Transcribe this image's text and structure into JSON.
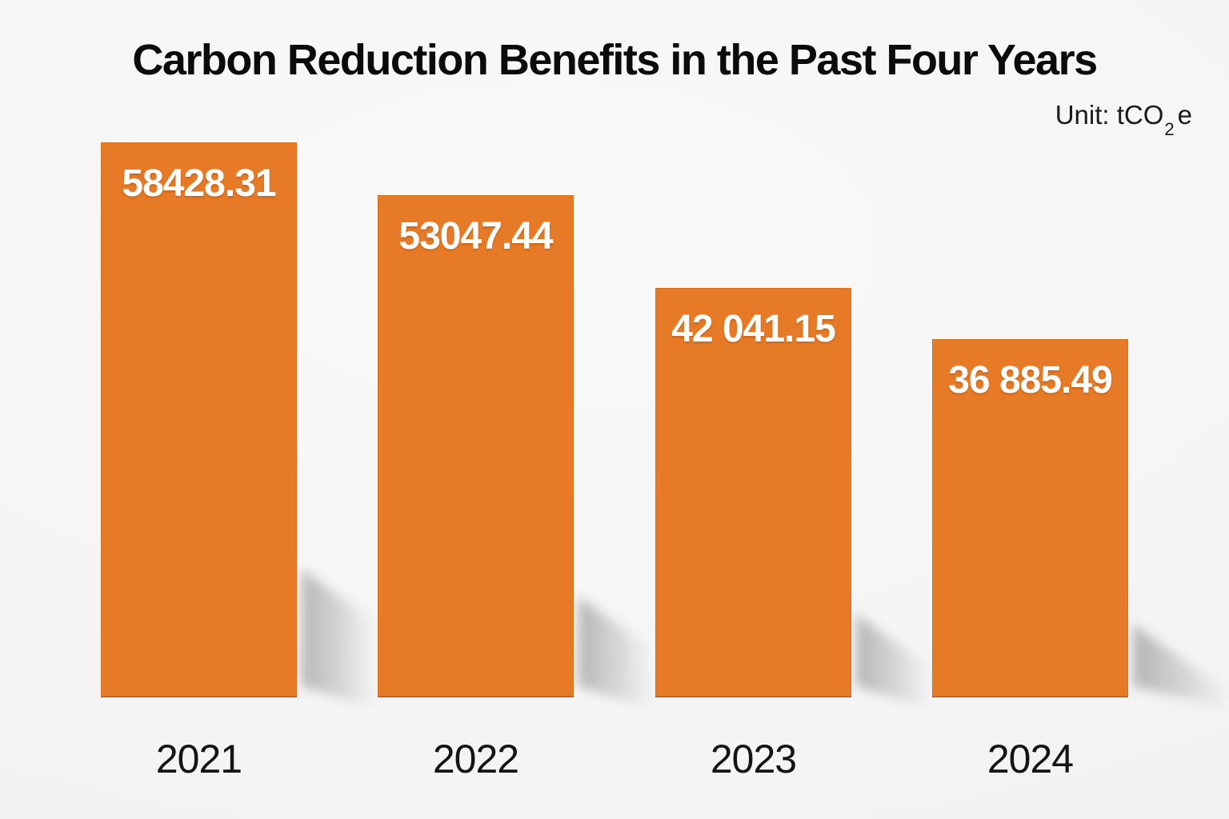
{
  "header": {
    "title": "Carbon Reduction Benefits in the Past Four Years",
    "unit_label": {
      "prefix": "Unit: tCO",
      "subscript": "2",
      "suffix": "e"
    }
  },
  "chart_data": {
    "type": "bar",
    "title": "Carbon Reduction Benefits in the Past Four Years",
    "unit": "tCO2e",
    "categories": [
      "2021",
      "2022",
      "2023",
      "2024"
    ],
    "values": [
      58428.31,
      53047.44,
      42041.15,
      36885.49
    ],
    "value_labels": [
      "58428.31",
      "53047.44",
      "42 041.15",
      "36 885.49"
    ],
    "series": [
      {
        "name": "Carbon reduction",
        "values": [
          58428.31,
          53047.44,
          42041.15,
          36885.49
        ]
      }
    ],
    "xlabel": "",
    "ylabel": "",
    "baseline": 0,
    "ylim": [
      0,
      60000
    ],
    "grid": false,
    "legend": false,
    "axes_hidden": true,
    "bar_color": "#E67A26",
    "value_label_color": "#FFFFFF",
    "category_label_color": "#141414",
    "title_color": "#0B0B0B",
    "background_color": "#F4F4F4",
    "shadow_effect": "soft diagonal cast shadow to bottom-right of each bar"
  }
}
